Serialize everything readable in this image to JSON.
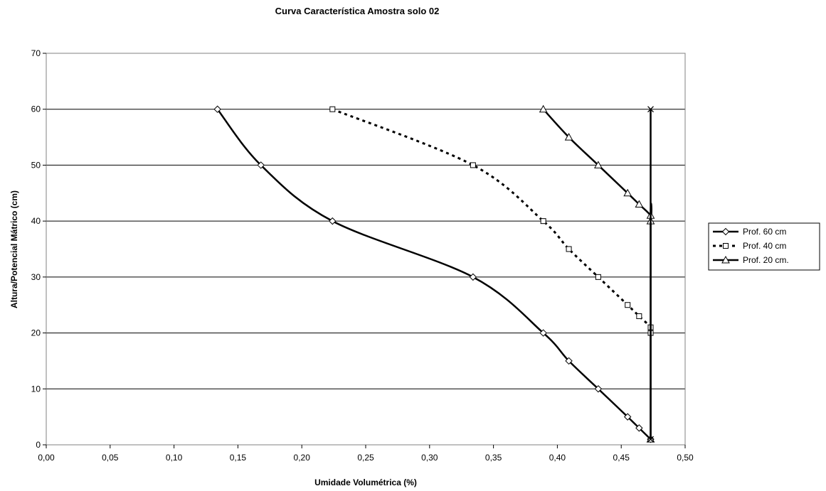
{
  "chart_data": {
    "type": "line",
    "title": "Curva Característica Amostra solo 02",
    "xlabel": "Umidade Volumétrica (%)",
    "ylabel": "Altura/Potencial Mátrico (cm)",
    "xlim": [
      0,
      0.5
    ],
    "ylim": [
      0,
      70
    ],
    "x_ticks": [
      "0,00",
      "0,05",
      "0,10",
      "0,15",
      "0,20",
      "0,25",
      "0,30",
      "0,35",
      "0,40",
      "0,45",
      "0,50"
    ],
    "y_ticks": [
      "0",
      "10",
      "20",
      "30",
      "40",
      "50",
      "60",
      "70"
    ],
    "grid": "horizontal",
    "legend_position": "right",
    "series": [
      {
        "name": "Prof. 60 cm",
        "marker": "diamond",
        "line": "solid",
        "points": [
          [
            0.134,
            60
          ],
          [
            0.168,
            50
          ],
          [
            0.224,
            40
          ],
          [
            0.334,
            30
          ],
          [
            0.389,
            20
          ],
          [
            0.409,
            15
          ],
          [
            0.432,
            10
          ],
          [
            0.455,
            5
          ],
          [
            0.464,
            3
          ],
          [
            0.473,
            1
          ]
        ]
      },
      {
        "name": "Prof. 40 cm",
        "marker": "square",
        "line": "dotted",
        "points": [
          [
            0.224,
            60
          ],
          [
            0.334,
            50
          ],
          [
            0.389,
            40
          ],
          [
            0.409,
            35
          ],
          [
            0.432,
            30
          ],
          [
            0.455,
            25
          ],
          [
            0.464,
            23
          ],
          [
            0.473,
            21
          ],
          [
            0.473,
            20
          ]
        ]
      },
      {
        "name": "Prof. 20 cm.",
        "marker": "triangle",
        "line": "solid",
        "points": [
          [
            0.389,
            60
          ],
          [
            0.409,
            55
          ],
          [
            0.432,
            50
          ],
          [
            0.455,
            45
          ],
          [
            0.464,
            43
          ],
          [
            0.473,
            41
          ],
          [
            0.473,
            40
          ],
          [
            0.473,
            1
          ]
        ]
      },
      {
        "marker": "x",
        "line": "solid",
        "points": [
          [
            0.473,
            60
          ],
          [
            0.473,
            1
          ]
        ]
      }
    ]
  }
}
